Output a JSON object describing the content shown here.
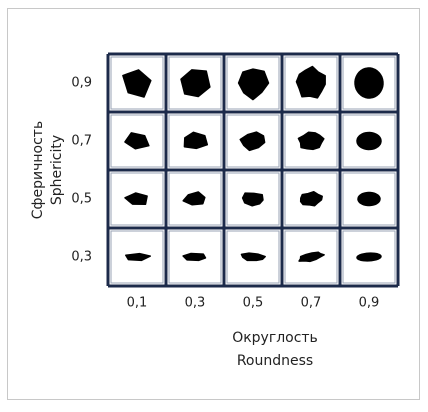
{
  "y_axis": {
    "title": [
      "Сферичность",
      "Sphericity"
    ],
    "ticks": [
      "0,9",
      "0,7",
      "0,5",
      "0,3"
    ]
  },
  "x_axis": {
    "title": [
      "Округлость",
      "Roundness"
    ],
    "ticks": [
      "0,1",
      "0,3",
      "0,5",
      "0,7",
      "0,9"
    ]
  }
}
